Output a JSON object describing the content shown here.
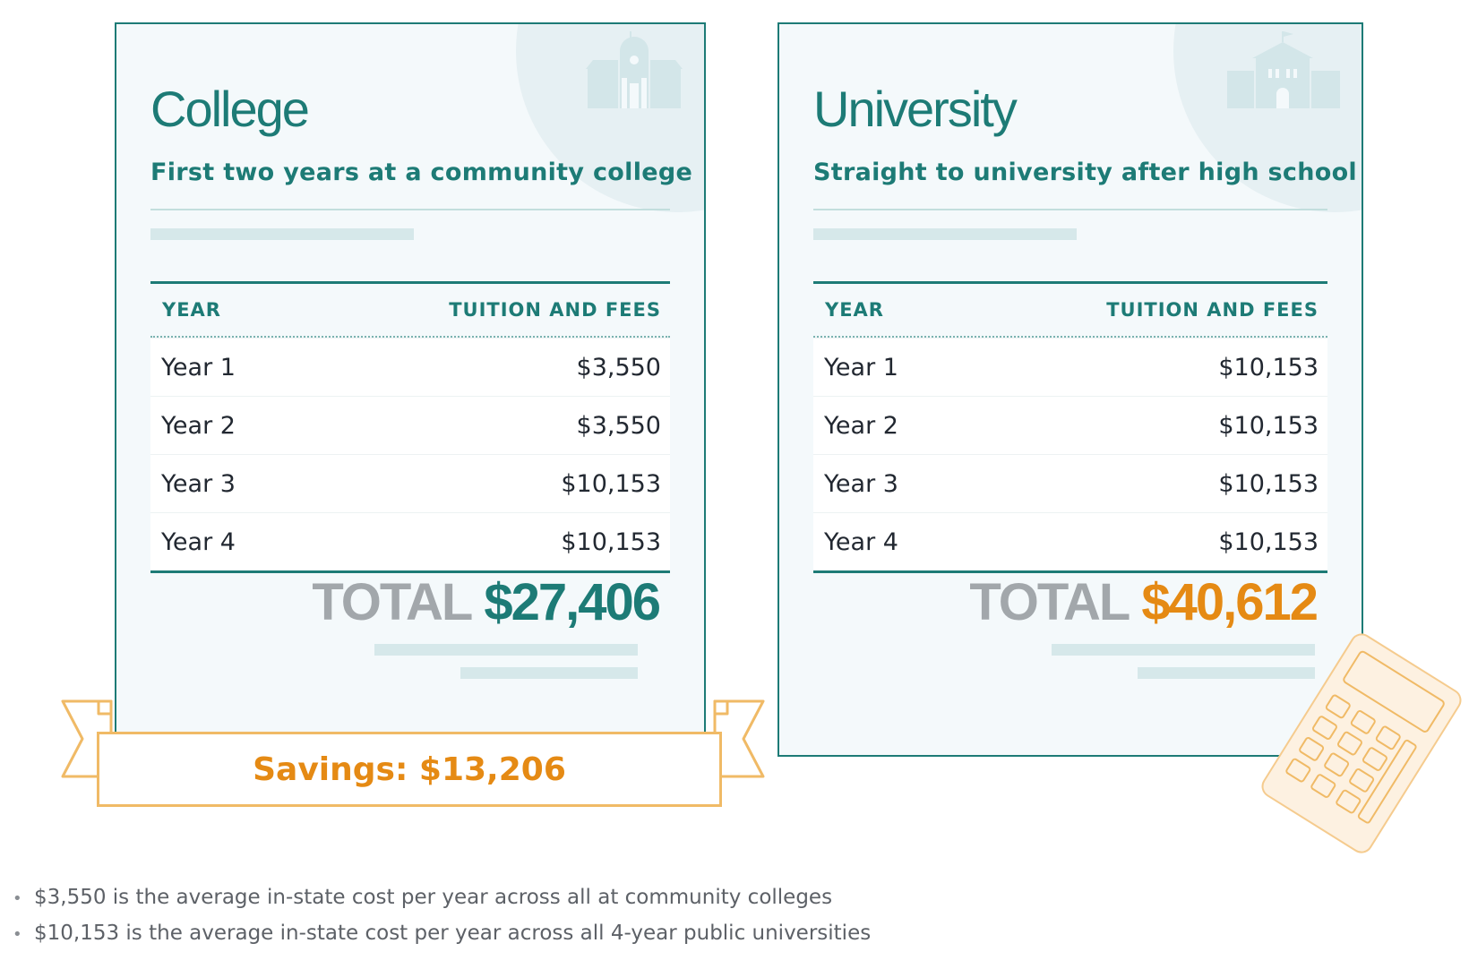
{
  "colors": {
    "teal": "#1d7b76",
    "orange": "#e58a14",
    "gray_total_label": "#a2a7ab",
    "card_bg": "#f4f9fb",
    "ribbon_border": "#f0ba66"
  },
  "college": {
    "title": "College",
    "subtitle": "First two years at a community college",
    "icon": "college-building-icon",
    "table": {
      "headers": [
        "YEAR",
        "TUITION AND FEES"
      ],
      "rows": [
        [
          "Year 1",
          "$3,550"
        ],
        [
          "Year 2",
          "$3,550"
        ],
        [
          "Year 3",
          "$10,153"
        ],
        [
          "Year 4",
          "$10,153"
        ]
      ]
    },
    "total_label": "TOTAL",
    "total_value": "$27,406"
  },
  "university": {
    "title": "University",
    "subtitle": "Straight to university after high school",
    "icon": "university-building-icon",
    "table": {
      "headers": [
        "YEAR",
        "TUITION AND FEES"
      ],
      "rows": [
        [
          "Year 1",
          "$10,153"
        ],
        [
          "Year 2",
          "$10,153"
        ],
        [
          "Year 3",
          "$10,153"
        ],
        [
          "Year 4",
          "$10,153"
        ]
      ]
    },
    "total_label": "TOTAL",
    "total_value": "$40,612"
  },
  "savings": "Savings: $13,206",
  "decoration_icon": "calculator-icon",
  "notes": [
    "$3,550 is the average in-state cost per year across all at community colleges",
    "$10,153 is the average in-state cost per year across all 4-year public universities"
  ]
}
